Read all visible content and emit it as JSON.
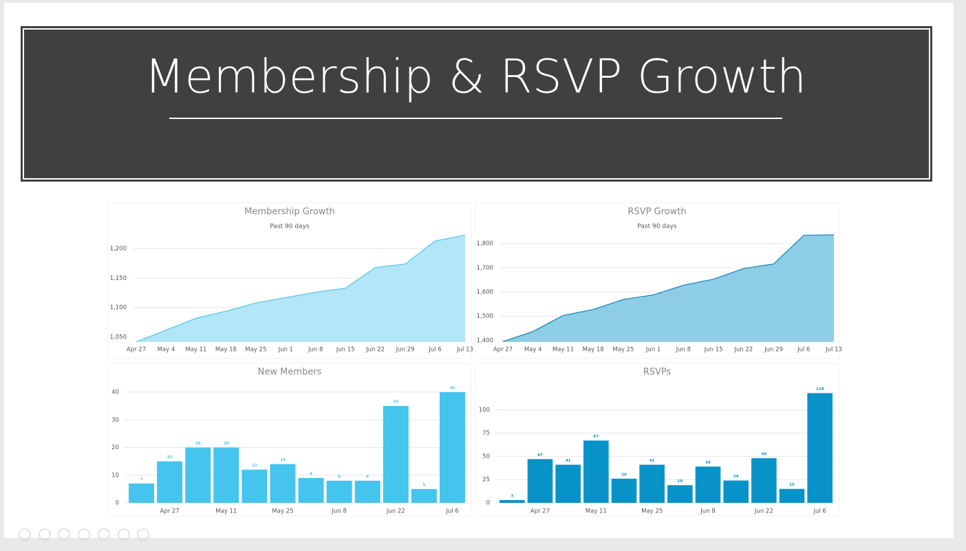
{
  "slide": {
    "title": "Membership & RSVP Growth"
  },
  "chart_data": [
    {
      "type": "area",
      "title": "Membership Growth",
      "subtitle": "Past 90 days",
      "categories": [
        "Apr 27",
        "May 4",
        "May 11",
        "May 18",
        "May 25",
        "Jun 1",
        "Jun 8",
        "Jun 15",
        "Jun 22",
        "Jun 29",
        "Jul 6",
        "Jul 13"
      ],
      "values": [
        1042,
        1062,
        1082,
        1094,
        1108,
        1117,
        1126,
        1133,
        1168,
        1174,
        1213,
        1223
      ],
      "color": "#5bc8e8",
      "fill": "#b3e6f7",
      "ylim": [
        1042,
        1225
      ],
      "yticks": [
        {
          "value": 1050,
          "label": "1,050"
        },
        {
          "value": 1100,
          "label": "1,100"
        },
        {
          "value": 1150,
          "label": "1,150"
        },
        {
          "value": 1200,
          "label": "1,200"
        }
      ],
      "grid": true
    },
    {
      "type": "area",
      "title": "RSVP Growth",
      "subtitle": "Past 90 days",
      "categories": [
        "Apr 27",
        "May 4",
        "May 11",
        "May 18",
        "May 25",
        "Jun 1",
        "Jun 8",
        "Jun 15",
        "Jun 22",
        "Jun 29",
        "Jul 6",
        "Jul 13"
      ],
      "values": [
        1395,
        1437,
        1503,
        1528,
        1569,
        1588,
        1628,
        1653,
        1697,
        1716,
        1834,
        1836
      ],
      "color": "#1a8ab8",
      "fill": "#8ecde6",
      "ylim": [
        1394,
        1840
      ],
      "yticks": [
        {
          "value": 1400,
          "label": "1,400"
        },
        {
          "value": 1500,
          "label": "1,500"
        },
        {
          "value": 1600,
          "label": "1,600"
        },
        {
          "value": 1700,
          "label": "1,700"
        },
        {
          "value": 1800,
          "label": "1,800"
        }
      ],
      "grid": true
    },
    {
      "type": "bar",
      "title": "New Members",
      "categories": [
        null,
        "Apr 27",
        null,
        "May 11",
        null,
        "May 25",
        null,
        "Jun 8",
        null,
        "Jun 22",
        null,
        "Jul 6"
      ],
      "values": [
        7,
        15,
        20,
        20,
        12,
        14,
        9,
        8,
        8,
        35,
        5,
        40
      ],
      "color": "#45c4ee",
      "ylim": [
        0,
        42
      ],
      "yticks": [
        0,
        10,
        20,
        30,
        40
      ],
      "grid": true
    },
    {
      "type": "bar",
      "title": "RSVPs",
      "categories": [
        null,
        "Apr 27",
        null,
        "May 11",
        null,
        "May 25",
        null,
        "Jun 8",
        null,
        "Jun 22",
        null,
        "Jul 6"
      ],
      "values": [
        3,
        47,
        41,
        67,
        26,
        41,
        19,
        39,
        24,
        48,
        15,
        118
      ],
      "color": "#0893c8",
      "ylim": [
        0,
        125
      ],
      "yticks": [
        0,
        25,
        50,
        75,
        100
      ],
      "grid": true
    }
  ]
}
